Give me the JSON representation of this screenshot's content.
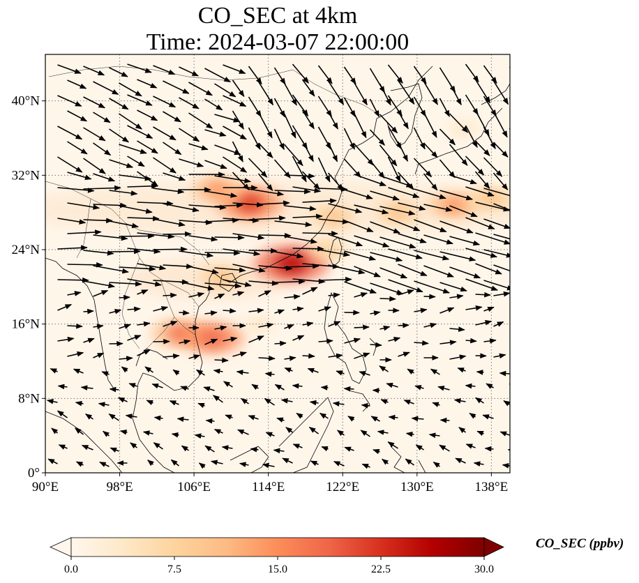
{
  "title": {
    "line1": "CO_SEC at 4km",
    "line2": "Time: 2024-03-07 22:00:00"
  },
  "map": {
    "lon_range": [
      90,
      140
    ],
    "lat_range": [
      0,
      45
    ],
    "x_ticks": [
      "90°E",
      "98°E",
      "106°E",
      "114°E",
      "122°E",
      "130°E",
      "138°E"
    ],
    "x_tick_values": [
      90,
      98,
      106,
      114,
      122,
      130,
      138
    ],
    "y_ticks": [
      "0°",
      "8°N",
      "16°N",
      "24°N",
      "32°N",
      "40°N"
    ],
    "y_tick_values": [
      0,
      8,
      16,
      24,
      32,
      40
    ],
    "gridlines": true,
    "features": [
      "coastlines",
      "country-borders",
      "wind-vectors"
    ]
  },
  "colorbar": {
    "label": "CO_SEC (ppbv)",
    "ticks": [
      "0.0",
      "7.5",
      "15.0",
      "22.5",
      "30.0"
    ],
    "min": 0,
    "max": 30,
    "extend": "both",
    "colormap": "OrRd",
    "colors": [
      "#fff7ec",
      "#fee8c8",
      "#fdd49e",
      "#fdbb84",
      "#fc8d59",
      "#ef6548",
      "#d7301f",
      "#b30000",
      "#7f0000"
    ]
  },
  "plumes": [
    {
      "lon": 112,
      "lat": 29,
      "value": 22
    },
    {
      "lon": 108.5,
      "lat": 30.5,
      "value": 14
    },
    {
      "lon": 121,
      "lat": 27.5,
      "value": 11
    },
    {
      "lon": 128,
      "lat": 28,
      "value": 12
    },
    {
      "lon": 134,
      "lat": 28.8,
      "value": 14
    },
    {
      "lon": 138,
      "lat": 29.5,
      "value": 12
    },
    {
      "lon": 116.5,
      "lat": 22.5,
      "value": 26
    },
    {
      "lon": 109,
      "lat": 21,
      "value": 12
    },
    {
      "lon": 104.5,
      "lat": 15,
      "value": 18
    },
    {
      "lon": 108,
      "lat": 14.5,
      "value": 20
    },
    {
      "lon": 113,
      "lat": 16,
      "value": 5
    },
    {
      "lon": 120.5,
      "lat": 24,
      "value": 9
    },
    {
      "lon": 135,
      "lat": 37,
      "value": 5
    }
  ]
}
